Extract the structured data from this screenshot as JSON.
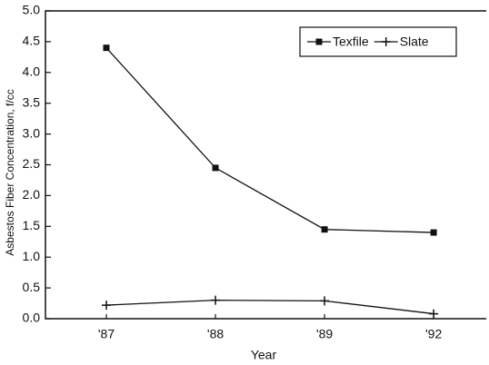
{
  "chart_data": {
    "type": "line",
    "categories": [
      "'87",
      "'88",
      "'89",
      "'92"
    ],
    "series": [
      {
        "name": "Texfile",
        "color": "#111111",
        "marker": "square",
        "values": [
          4.4,
          2.45,
          1.45,
          1.4
        ]
      },
      {
        "name": "Slate",
        "color": "#111111",
        "marker": "plus",
        "values": [
          0.22,
          0.3,
          0.29,
          0.08
        ]
      }
    ],
    "xlabel": "Year",
    "ylabel": "Asbestos Fiber Concentration, f/cc",
    "ylim": [
      0,
      5
    ],
    "yticks": [
      {
        "value": 0,
        "label": "0.0"
      },
      0.5,
      {
        "value": 1,
        "label": "1.0"
      },
      1.5,
      {
        "value": 2,
        "label": "2.0"
      },
      2.5,
      {
        "value": 3,
        "label": "3.0"
      },
      3.5,
      {
        "value": 4,
        "label": "4.0"
      },
      4.5,
      {
        "value": 5,
        "label": "5.0"
      }
    ],
    "legend": "upper right",
    "grid": false
  }
}
